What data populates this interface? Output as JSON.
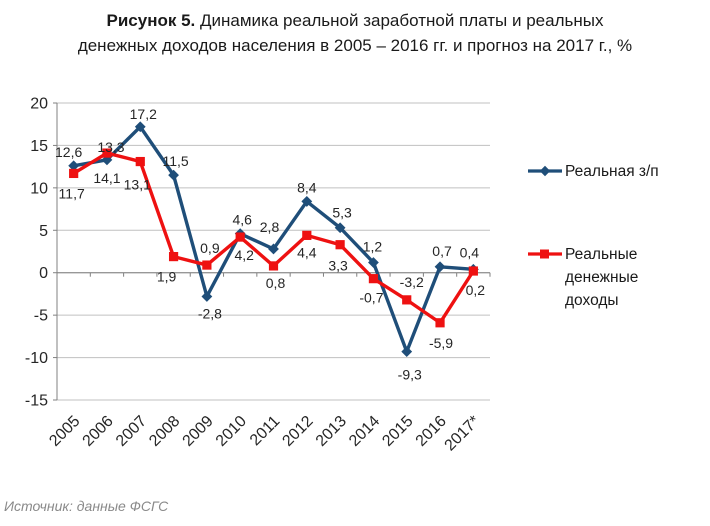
{
  "title": {
    "prefix": "Рисунок 5.",
    "line1_rest": " Динамика реальной заработной платы и реальных",
    "line2": "денежных доходов населения в 2005 – 2016 гг. и прогноз на 2017 г., %"
  },
  "source_note": "Источник: данные ФСГС",
  "chart_data": {
    "type": "line",
    "categories": [
      "2005",
      "2006",
      "2007",
      "2008",
      "2009",
      "2010",
      "2011",
      "2012",
      "2013",
      "2014",
      "2015",
      "2016",
      "2017*"
    ],
    "series": [
      {
        "name": "Реальная з/п",
        "color": "#1F4E79",
        "marker": "diamond",
        "values": [
          12.6,
          13.3,
          17.2,
          11.5,
          -2.8,
          4.6,
          2.8,
          8.4,
          5.3,
          1.2,
          -9.3,
          0.7,
          0.4
        ],
        "labels": [
          "12,6",
          "13,3",
          "17,2",
          "11,5",
          "-2,8",
          "4,6",
          "2,8",
          "8,4",
          "5,3",
          "1,2",
          "-9,3",
          "0,7",
          "0,4"
        ],
        "label_offsets": [
          [
            -5,
            -9
          ],
          [
            4,
            -8
          ],
          [
            3,
            -8
          ],
          [
            2,
            -9
          ],
          [
            3,
            22
          ],
          [
            2,
            -9
          ],
          [
            -4,
            -17
          ],
          [
            0,
            -9
          ],
          [
            2,
            -10
          ],
          [
            -1,
            -11
          ],
          [
            3,
            28
          ],
          [
            2,
            -11
          ],
          [
            -4,
            -12
          ]
        ]
      },
      {
        "name": "Реальные денежные доходы",
        "color": "#EE1111",
        "marker": "square",
        "values": [
          11.7,
          14.1,
          13.1,
          1.9,
          0.9,
          4.2,
          0.8,
          4.4,
          3.3,
          -0.7,
          -3.2,
          -5.9,
          0.2
        ],
        "labels": [
          "11,7",
          "14,1",
          "13,1",
          "1,9",
          "0,9",
          "4,2",
          "0,8",
          "4,4",
          "3,3",
          "-0,7",
          "-3,2",
          "-5,9",
          "0,2"
        ],
        "label_offsets": [
          [
            -2,
            25
          ],
          [
            0,
            30
          ],
          [
            -3,
            28
          ],
          [
            -7,
            25
          ],
          [
            3,
            -12
          ],
          [
            4,
            23
          ],
          [
            2,
            22
          ],
          [
            0,
            22
          ],
          [
            -2,
            26
          ],
          [
            -2,
            24
          ],
          [
            5,
            -13
          ],
          [
            1,
            25
          ],
          [
            2,
            24
          ]
        ]
      }
    ],
    "ylim": [
      -15,
      20
    ],
    "yticks": [
      20,
      15,
      10,
      5,
      0,
      -5,
      -10,
      -15
    ],
    "grid": true,
    "legend_position": "right",
    "grid_color": "#C0C0C0",
    "axis_color": "#808080",
    "label_color": "#1a1a1a"
  }
}
